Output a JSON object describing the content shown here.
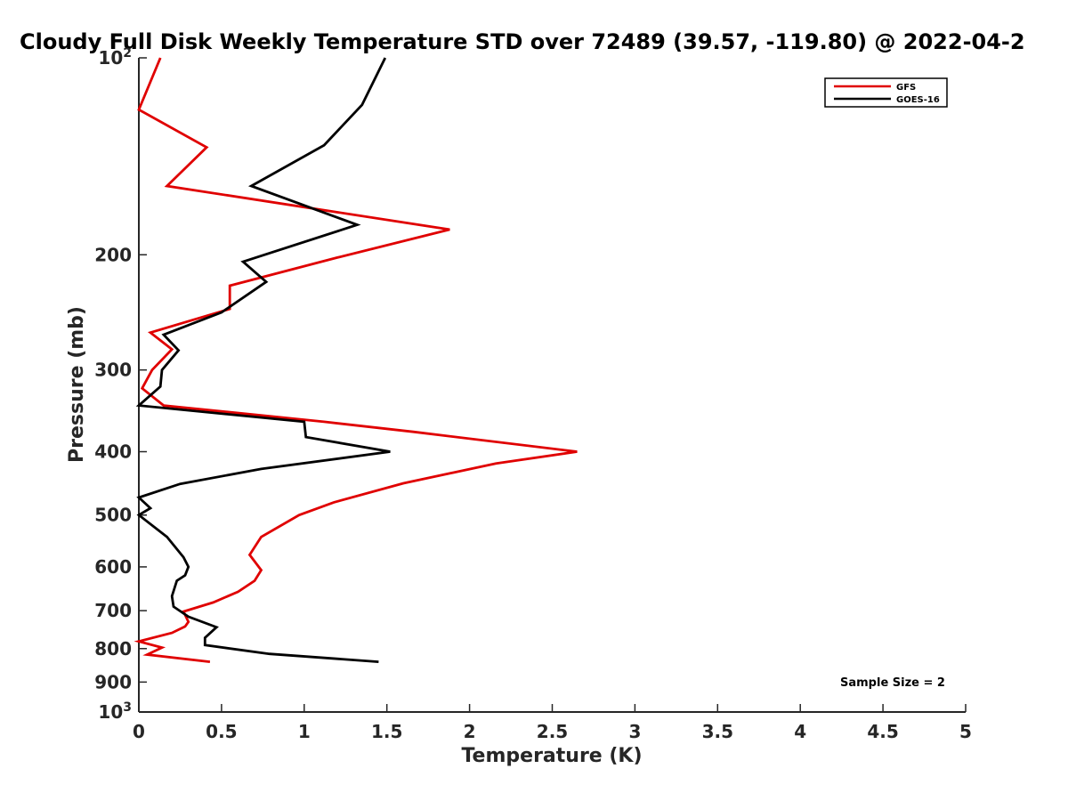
{
  "chart_data": {
    "type": "line",
    "title": "Cloudy Full Disk Weekly Temperature STD over 72489 (39.57, -119.80) @ 2022-04-2",
    "xlabel": "Temperature (K)",
    "ylabel": "Pressure (mb)",
    "xlim": [
      0,
      5
    ],
    "ylim": [
      100,
      1000
    ],
    "yscale": "log",
    "y_reversed": true,
    "x_ticks": [
      "0",
      "0.5",
      "1",
      "1.5",
      "2",
      "2.5",
      "3",
      "3.5",
      "4",
      "4.5",
      "5"
    ],
    "y_ticks": [
      {
        "value": 100,
        "base": "10",
        "exp": "2"
      },
      {
        "value": 200,
        "label": "200"
      },
      {
        "value": 300,
        "label": "300"
      },
      {
        "value": 400,
        "label": "400"
      },
      {
        "value": 500,
        "label": "500"
      },
      {
        "value": 600,
        "label": "600"
      },
      {
        "value": 700,
        "label": "700"
      },
      {
        "value": 800,
        "label": "800"
      },
      {
        "value": 900,
        "label": "900"
      },
      {
        "value": 1000,
        "base": "10",
        "exp": "3"
      }
    ],
    "grid": false,
    "legend_position": "top-right",
    "annotation": "Sample Size = 2",
    "series": [
      {
        "name": "GFS",
        "color": "#e00000",
        "points": [
          [
            0.13,
            100
          ],
          [
            0.0,
            120
          ],
          [
            0.41,
            137
          ],
          [
            0.17,
            157
          ],
          [
            1.88,
            183
          ],
          [
            1.2,
            202
          ],
          [
            0.55,
            223
          ],
          [
            0.55,
            242
          ],
          [
            0.07,
            263
          ],
          [
            0.2,
            279
          ],
          [
            0.08,
            300
          ],
          [
            0.02,
            320
          ],
          [
            0.15,
            340
          ],
          [
            1.12,
            360
          ],
          [
            1.66,
            373
          ],
          [
            2.65,
            400
          ],
          [
            2.16,
            417
          ],
          [
            1.6,
            447
          ],
          [
            1.18,
            478
          ],
          [
            0.97,
            500
          ],
          [
            0.74,
            540
          ],
          [
            0.67,
            575
          ],
          [
            0.74,
            607
          ],
          [
            0.7,
            630
          ],
          [
            0.6,
            655
          ],
          [
            0.45,
            680
          ],
          [
            0.27,
            702
          ],
          [
            0.3,
            728
          ],
          [
            0.28,
            740
          ],
          [
            0.2,
            757
          ],
          [
            0.0,
            780
          ],
          [
            0.14,
            797
          ],
          [
            0.05,
            817
          ],
          [
            0.43,
            838
          ]
        ]
      },
      {
        "name": "GOES-16",
        "color": "#000000",
        "points": [
          [
            1.49,
            100
          ],
          [
            1.35,
            118
          ],
          [
            1.12,
            136
          ],
          [
            0.68,
            157
          ],
          [
            1.32,
            180
          ],
          [
            0.63,
            205
          ],
          [
            0.77,
            220
          ],
          [
            0.5,
            245
          ],
          [
            0.15,
            265
          ],
          [
            0.24,
            280
          ],
          [
            0.14,
            300
          ],
          [
            0.13,
            318
          ],
          [
            0.0,
            340
          ],
          [
            1.0,
            360
          ],
          [
            1.01,
            380
          ],
          [
            1.52,
            400
          ],
          [
            0.74,
            425
          ],
          [
            0.25,
            448
          ],
          [
            0.0,
            470
          ],
          [
            0.07,
            488
          ],
          [
            0.0,
            500
          ],
          [
            0.17,
            540
          ],
          [
            0.27,
            580
          ],
          [
            0.3,
            600
          ],
          [
            0.28,
            618
          ],
          [
            0.23,
            630
          ],
          [
            0.2,
            665
          ],
          [
            0.21,
            690
          ],
          [
            0.3,
            715
          ],
          [
            0.47,
            742
          ],
          [
            0.4,
            770
          ],
          [
            0.4,
            790
          ],
          [
            0.79,
            815
          ],
          [
            1.45,
            838
          ]
        ]
      }
    ]
  }
}
